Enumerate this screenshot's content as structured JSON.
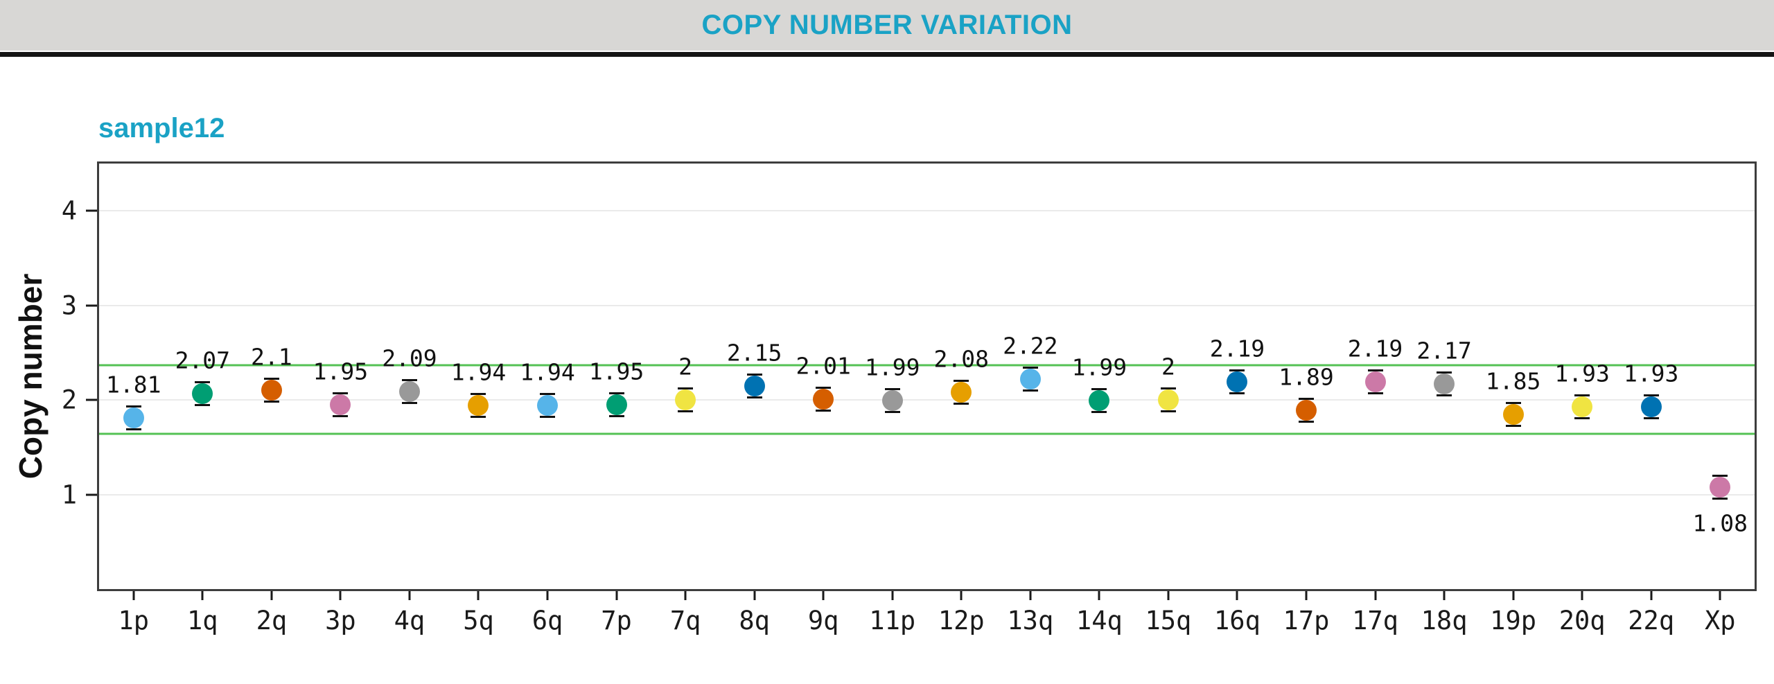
{
  "header": {
    "title": "COPY NUMBER VARIATION",
    "accent_color": "#1aa2c5"
  },
  "chart_data": {
    "type": "scatter",
    "title": "sample12",
    "xlabel": "",
    "ylabel": "Copy number",
    "ylim": [
      0,
      4.5
    ],
    "yticks": [
      4,
      3,
      2,
      1
    ],
    "grid": "horizontal",
    "legend": "none",
    "reference_lines": {
      "values": [
        2.37,
        1.64
      ],
      "color": "#54c254"
    },
    "points": [
      {
        "category": "1p",
        "value": 1.81,
        "display": "1.81",
        "color": "#56B4E9",
        "label_position": "above"
      },
      {
        "category": "1q",
        "value": 2.07,
        "display": "2.07",
        "color": "#009E73",
        "label_position": "above"
      },
      {
        "category": "2q",
        "value": 2.1,
        "display": "2.1",
        "color": "#D55E00",
        "label_position": "above"
      },
      {
        "category": "3p",
        "value": 1.95,
        "display": "1.95",
        "color": "#CC79A7",
        "label_position": "above"
      },
      {
        "category": "4q",
        "value": 2.09,
        "display": "2.09",
        "color": "#999999",
        "label_position": "above"
      },
      {
        "category": "5q",
        "value": 1.94,
        "display": "1.94",
        "color": "#E69F00",
        "label_position": "above"
      },
      {
        "category": "6q",
        "value": 1.94,
        "display": "1.94",
        "color": "#56B4E9",
        "label_position": "above"
      },
      {
        "category": "7p",
        "value": 1.95,
        "display": "1.95",
        "color": "#009E73",
        "label_position": "above"
      },
      {
        "category": "7q",
        "value": 2,
        "display": "2",
        "color": "#F0E442",
        "label_position": "above"
      },
      {
        "category": "8q",
        "value": 2.15,
        "display": "2.15",
        "color": "#0072B2",
        "label_position": "above"
      },
      {
        "category": "9q",
        "value": 2.01,
        "display": "2.01",
        "color": "#D55E00",
        "label_position": "above"
      },
      {
        "category": "11p",
        "value": 1.99,
        "display": "1.99",
        "color": "#999999",
        "label_position": "above"
      },
      {
        "category": "12p",
        "value": 2.08,
        "display": "2.08",
        "color": "#E69F00",
        "label_position": "above"
      },
      {
        "category": "13q",
        "value": 2.22,
        "display": "2.22",
        "color": "#56B4E9",
        "label_position": "above"
      },
      {
        "category": "14q",
        "value": 1.99,
        "display": "1.99",
        "color": "#009E73",
        "label_position": "above"
      },
      {
        "category": "15q",
        "value": 2,
        "display": "2",
        "color": "#F0E442",
        "label_position": "above"
      },
      {
        "category": "16q",
        "value": 2.19,
        "display": "2.19",
        "color": "#0072B2",
        "label_position": "above"
      },
      {
        "category": "17p",
        "value": 1.89,
        "display": "1.89",
        "color": "#D55E00",
        "label_position": "above"
      },
      {
        "category": "17q",
        "value": 2.19,
        "display": "2.19",
        "color": "#CC79A7",
        "label_position": "above"
      },
      {
        "category": "18q",
        "value": 2.17,
        "display": "2.17",
        "color": "#999999",
        "label_position": "above"
      },
      {
        "category": "19p",
        "value": 1.85,
        "display": "1.85",
        "color": "#E69F00",
        "label_position": "above"
      },
      {
        "category": "20q",
        "value": 1.93,
        "display": "1.93",
        "color": "#F0E442",
        "label_position": "above"
      },
      {
        "category": "22q",
        "value": 1.93,
        "display": "1.93",
        "color": "#0072B2",
        "label_position": "above"
      },
      {
        "category": "Xp",
        "value": 1.08,
        "display": "1.08",
        "color": "#CC79A7",
        "label_position": "below"
      }
    ]
  }
}
